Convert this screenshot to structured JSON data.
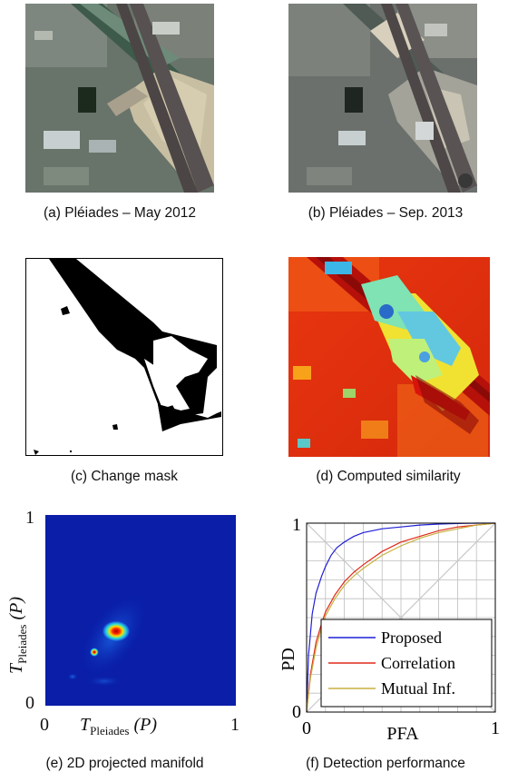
{
  "figure": {
    "panels": [
      {
        "id": "a",
        "caption": "(a) Pléiades – May 2012"
      },
      {
        "id": "b",
        "caption": "(b) Pléiades – Sep. 2013"
      },
      {
        "id": "c",
        "caption": "(c) Change mask"
      },
      {
        "id": "d",
        "caption": "(d) Computed similarity"
      },
      {
        "id": "e",
        "caption": "(e)  2D projected manifold"
      },
      {
        "id": "f",
        "caption": "(f)  Detection performance"
      }
    ]
  },
  "manifold": {
    "y_label": "T",
    "y_label_sub": "Pleiades",
    "y_label_arg": "(P)",
    "x_label": "T",
    "x_label_sub": "Pleiades",
    "x_label_arg": "(P)",
    "tick_0": "0",
    "tick_1": "1",
    "tick_0_x": "0",
    "tick_1_x": "1"
  },
  "chart_data": {
    "type": "line",
    "xlabel": "PFA",
    "ylabel": "PD",
    "xlim": [
      0,
      1
    ],
    "ylim": [
      0,
      1
    ],
    "xticks": [
      "0",
      "1"
    ],
    "yticks": [
      "0",
      "1"
    ],
    "grid": true,
    "legend_position": "bottom-right",
    "series": [
      {
        "name": "Proposed",
        "color": "#1f1fd6",
        "x": [
          0,
          0.01,
          0.03,
          0.05,
          0.08,
          0.1,
          0.13,
          0.16,
          0.2,
          0.25,
          0.3,
          0.4,
          0.5,
          0.6,
          0.7,
          0.8,
          0.9,
          1.0
        ],
        "y": [
          0,
          0.3,
          0.52,
          0.63,
          0.72,
          0.77,
          0.83,
          0.87,
          0.9,
          0.93,
          0.95,
          0.97,
          0.98,
          0.99,
          0.995,
          0.998,
          1.0,
          1.0
        ]
      },
      {
        "name": "Correlation",
        "color": "#e02a1a",
        "x": [
          0,
          0.02,
          0.05,
          0.08,
          0.1,
          0.15,
          0.2,
          0.25,
          0.3,
          0.4,
          0.5,
          0.6,
          0.7,
          0.8,
          0.9,
          1.0
        ],
        "y": [
          0,
          0.2,
          0.37,
          0.47,
          0.53,
          0.62,
          0.69,
          0.74,
          0.78,
          0.85,
          0.9,
          0.93,
          0.96,
          0.98,
          0.99,
          1.0
        ]
      },
      {
        "name": "Mutual Inf.",
        "color": "#c8b040",
        "x": [
          0,
          0.02,
          0.05,
          0.08,
          0.1,
          0.15,
          0.2,
          0.25,
          0.3,
          0.4,
          0.5,
          0.6,
          0.7,
          0.8,
          0.9,
          1.0
        ],
        "y": [
          0,
          0.18,
          0.34,
          0.45,
          0.51,
          0.6,
          0.67,
          0.72,
          0.76,
          0.83,
          0.88,
          0.92,
          0.95,
          0.97,
          0.99,
          1.0
        ]
      }
    ],
    "reference_lines": [
      {
        "x": [
          0,
          1
        ],
        "y": [
          0,
          1
        ]
      },
      {
        "x": [
          0,
          1
        ],
        "y": [
          1,
          0
        ]
      }
    ]
  }
}
